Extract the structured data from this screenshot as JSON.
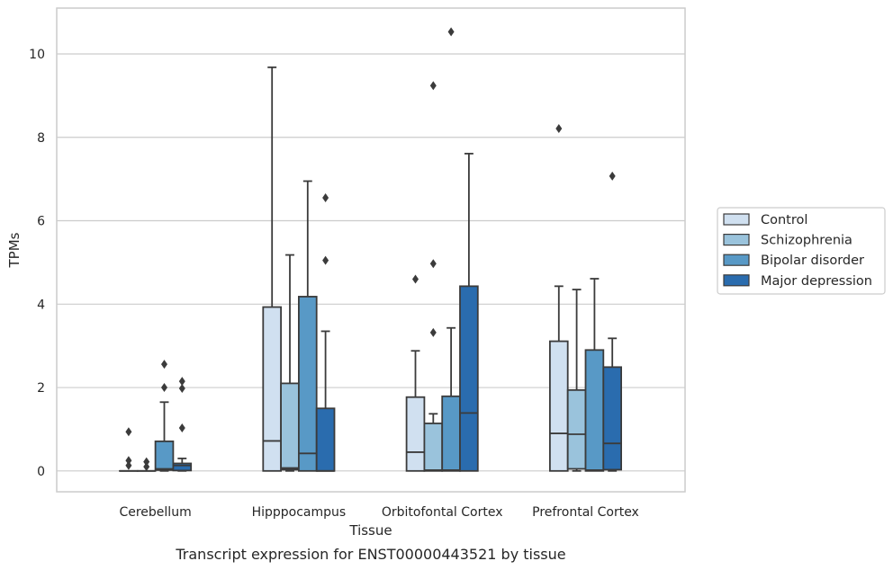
{
  "chart_data": {
    "type": "box",
    "caption": "Transcript expression for ENST00000443521 by tissue",
    "xlabel": "Tissue",
    "ylabel": "TPMs",
    "ylim": [
      -0.5,
      11.1
    ],
    "yticks": [
      0,
      2,
      4,
      6,
      8,
      10
    ],
    "grid": "horizontal",
    "legend_position": "right",
    "categories": [
      "Cerebellum",
      "Hipppocampus",
      "Orbitofontal Cortex",
      "Prefrontal Cortex"
    ],
    "series": [
      {
        "name": "Control",
        "color": "#d0e0f0",
        "boxes": [
          {
            "whislo": 0,
            "q1": 0,
            "med": 0,
            "q3": 0,
            "whishi": 0,
            "fliers": [
              0.13,
              0.25,
              0.94
            ]
          },
          {
            "whislo": 0,
            "q1": 0,
            "med": 0.72,
            "q3": 3.93,
            "whishi": 9.68,
            "fliers": []
          },
          {
            "whislo": 0,
            "q1": 0,
            "med": 0.45,
            "q3": 1.77,
            "whishi": 2.88,
            "fliers": [
              4.6
            ]
          },
          {
            "whislo": 0,
            "q1": 0,
            "med": 0.9,
            "q3": 3.11,
            "whishi": 4.43,
            "fliers": [
              8.21
            ]
          }
        ]
      },
      {
        "name": "Schizophrenia",
        "color": "#9ac3dc",
        "boxes": [
          {
            "whislo": 0,
            "q1": 0,
            "med": 0,
            "q3": 0,
            "whishi": 0,
            "fliers": [
              0.1,
              0.22
            ]
          },
          {
            "whislo": 0,
            "q1": 0.03,
            "med": 0.07,
            "q3": 2.1,
            "whishi": 5.18,
            "fliers": []
          },
          {
            "whislo": 0,
            "q1": 0,
            "med": 0.02,
            "q3": 1.14,
            "whishi": 1.37,
            "fliers": [
              3.32,
              4.97,
              9.24
            ]
          },
          {
            "whislo": 0,
            "q1": 0.05,
            "med": 0.88,
            "q3": 1.94,
            "whishi": 4.35,
            "fliers": []
          }
        ]
      },
      {
        "name": "Bipolar disorder",
        "color": "#5899c6",
        "boxes": [
          {
            "whislo": 0,
            "q1": 0.02,
            "med": 0.05,
            "q3": 0.71,
            "whishi": 1.65,
            "fliers": [
              2.0,
              2.56
            ]
          },
          {
            "whislo": 0,
            "q1": 0,
            "med": 0.42,
            "q3": 4.18,
            "whishi": 6.95,
            "fliers": []
          },
          {
            "whislo": 0,
            "q1": 0,
            "med": 0.02,
            "q3": 1.79,
            "whishi": 3.43,
            "fliers": [
              10.53
            ]
          },
          {
            "whislo": 0,
            "q1": 0,
            "med": 0.02,
            "q3": 2.9,
            "whishi": 4.61,
            "fliers": []
          }
        ]
      },
      {
        "name": "Major depression",
        "color": "#2a6cae",
        "boxes": [
          {
            "whislo": 0,
            "q1": 0.01,
            "med": 0.13,
            "q3": 0.18,
            "whishi": 0.3,
            "fliers": [
              1.03,
              1.98,
              2.15
            ]
          },
          {
            "whislo": 0,
            "q1": 0,
            "med": 0,
            "q3": 1.5,
            "whishi": 3.35,
            "fliers": [
              5.05,
              6.55
            ]
          },
          {
            "whislo": 0,
            "q1": 0,
            "med": 1.39,
            "q3": 4.43,
            "whishi": 7.61,
            "fliers": []
          },
          {
            "whislo": 0,
            "q1": 0.03,
            "med": 0.66,
            "q3": 2.49,
            "whishi": 3.18,
            "fliers": [
              7.07
            ]
          }
        ]
      }
    ]
  }
}
